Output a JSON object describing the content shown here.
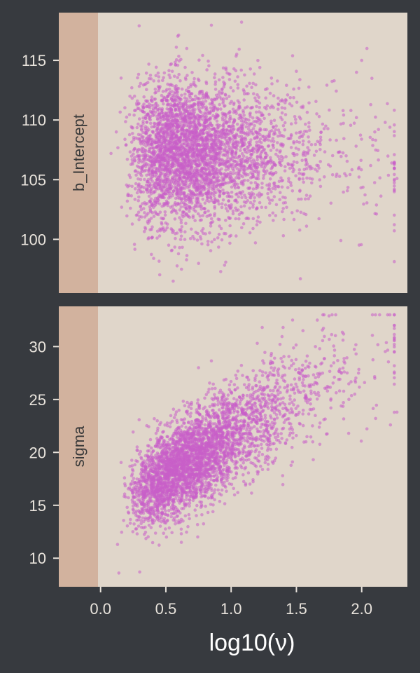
{
  "colors": {
    "background": "#373a3f",
    "panel": "#e0d6ca",
    "strip": "#d2b29e",
    "point": "#c95fc9",
    "tick_text": "#e8e3dc"
  },
  "chart_data": {
    "type": "scatter",
    "xlabel": "log10(ν)",
    "x_ticks": [
      "0.0",
      "0.5",
      "1.0",
      "1.5",
      "2.0"
    ],
    "x_tick_values": [
      0.0,
      0.5,
      1.0,
      1.5,
      2.0
    ],
    "xlim": [
      -0.32,
      2.35
    ],
    "grid": false,
    "panels": [
      {
        "strip_label": "b_Intercept",
        "ylim": [
          95.5,
          119
        ],
        "y_ticks": [
          "100",
          "105",
          "110",
          "115"
        ],
        "y_tick_values": [
          100,
          105,
          110,
          115
        ],
        "description_points": [
          {
            "x": 0.58,
            "y": 116.1
          },
          {
            "x": 0.66,
            "y": 116.0
          },
          {
            "x": 1.08,
            "y": 118.2
          },
          {
            "x": 1.53,
            "y": 96.7
          },
          {
            "x": 0.62,
            "y": 97.5
          },
          {
            "x": 0.92,
            "y": 97.3
          },
          {
            "x": 2.04,
            "y": 116.0
          },
          {
            "x": 2.0,
            "y": 115.0
          },
          {
            "x": 1.96,
            "y": 114.0
          },
          {
            "x": 2.1,
            "y": 109.0
          },
          {
            "x": 2.27,
            "y": 105.1
          },
          {
            "x": 2.23,
            "y": 106.4
          },
          {
            "x": 1.84,
            "y": 99.9
          },
          {
            "x": 1.4,
            "y": 100.3
          },
          {
            "x": 0.38,
            "y": 100.8
          },
          {
            "x": 0.12,
            "y": 109.0
          },
          {
            "x": 0.08,
            "y": 107.2
          },
          {
            "x": 1.22,
            "y": 114.4
          }
        ],
        "cluster": {
          "n_points": 3800,
          "x_center": 0.72,
          "x_log_sd": 0.45,
          "x_min": 0.1,
          "x_max": 2.25,
          "y_center": 107.2,
          "y_sd": 3.0,
          "y_min": 96.5,
          "y_max": 118.2,
          "correlation": 0.0
        }
      },
      {
        "strip_label": "sigma",
        "ylim": [
          7.3,
          33.8
        ],
        "y_ticks": [
          "10",
          "15",
          "20",
          "25",
          "30"
        ],
        "y_tick_values": [
          10,
          15,
          20,
          25,
          30
        ],
        "description_points": [
          {
            "x": 1.75,
            "y": 32.9
          },
          {
            "x": 1.55,
            "y": 31.5
          },
          {
            "x": 0.14,
            "y": 8.6
          },
          {
            "x": 0.3,
            "y": 8.7
          },
          {
            "x": 0.13,
            "y": 11.3
          },
          {
            "x": 2.27,
            "y": 23.8
          },
          {
            "x": 2.22,
            "y": 22.6
          },
          {
            "x": 2.1,
            "y": 27.0
          },
          {
            "x": 1.9,
            "y": 21.8
          },
          {
            "x": 1.2,
            "y": 30.3
          },
          {
            "x": 0.75,
            "y": 28.0
          },
          {
            "x": 0.43,
            "y": 14.8
          }
        ],
        "cluster": {
          "n_points": 3800,
          "x_center": 0.72,
          "x_log_sd": 0.45,
          "x_min": 0.1,
          "x_max": 2.25,
          "y_intercept": 14.0,
          "y_slope": 7.5,
          "y_resid_sd": 2.3,
          "y_min": 8.5,
          "y_max": 33.0
        }
      }
    ]
  }
}
